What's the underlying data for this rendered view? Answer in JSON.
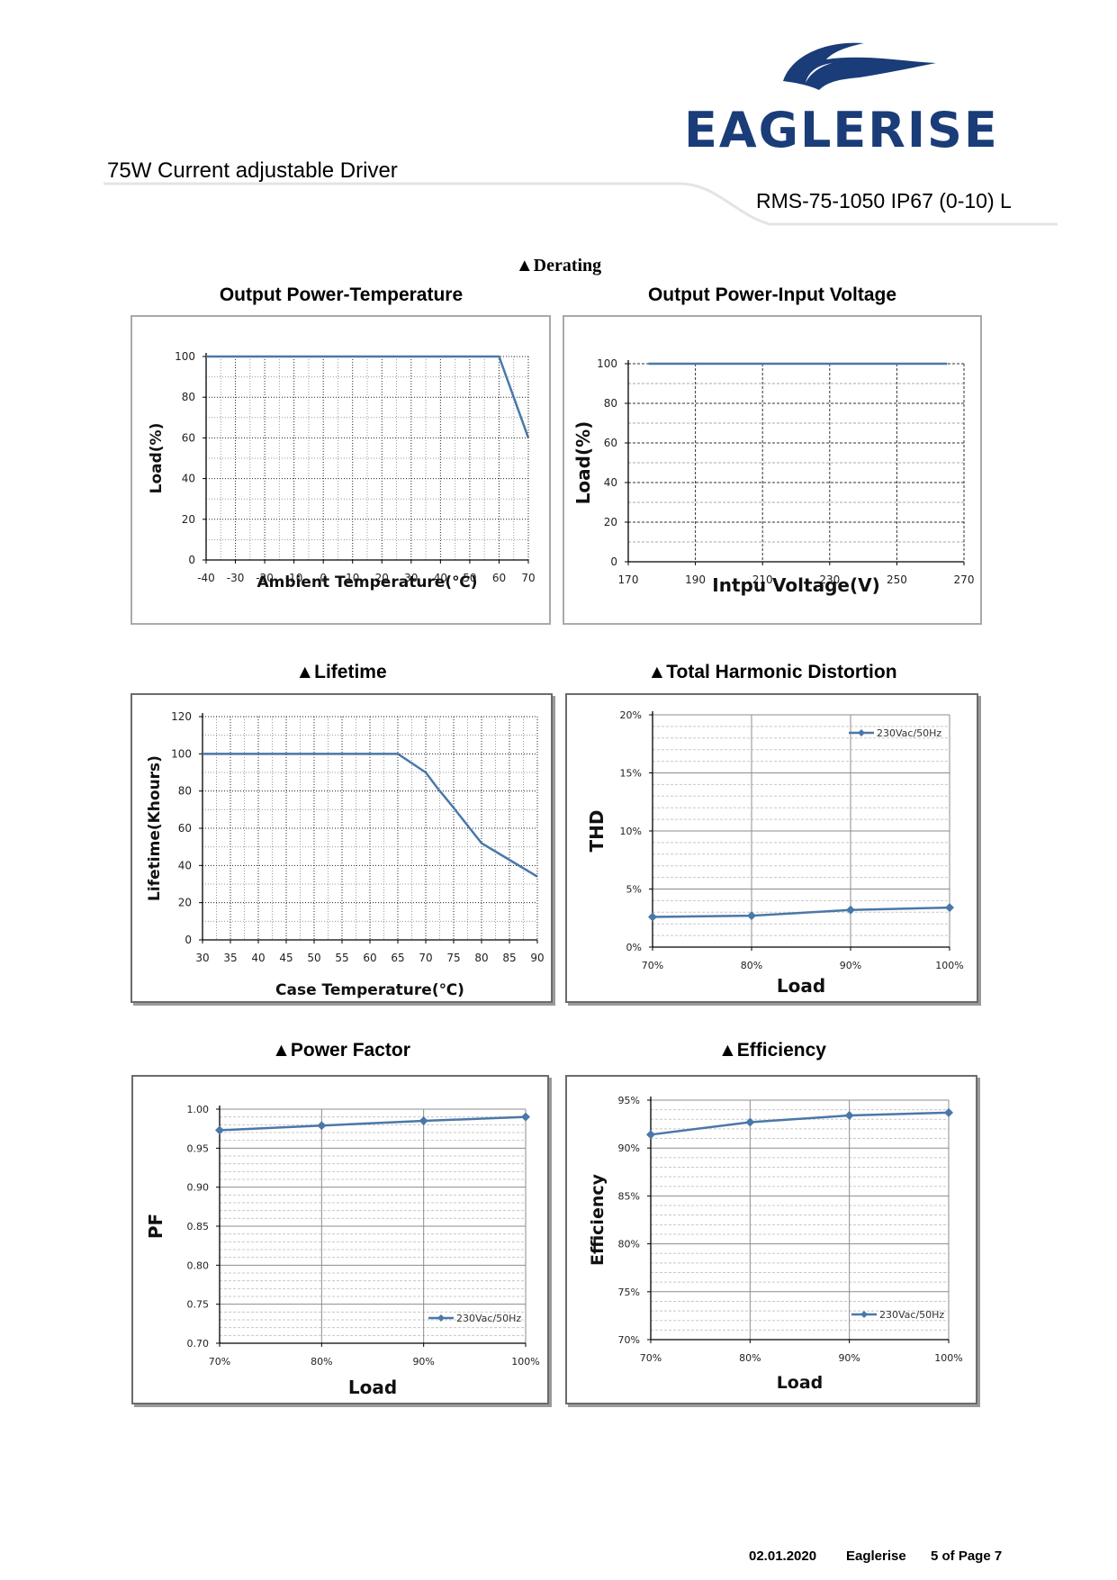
{
  "header": {
    "brand": "EAGLERISE",
    "doc_title": "75W Current adjustable Driver",
    "model": "RMS-75-1050 IP67 (0-10) L"
  },
  "section_derating": "▲Derating",
  "charts": {
    "temp": {
      "title": "Output Power-Temperature"
    },
    "vin": {
      "title": "Output Power-Input Voltage"
    },
    "life": {
      "title": "▲Lifetime"
    },
    "thd": {
      "title": "▲Total Harmonic Distortion"
    },
    "pf": {
      "title": "▲Power Factor"
    },
    "eff": {
      "title": "▲Efficiency"
    }
  },
  "footer": {
    "date": "02.01.2020",
    "company": "Eaglerise",
    "page": "5 of Page 7"
  },
  "colors": {
    "line": "#4a78a8",
    "brand_navy": "#1a3c78",
    "grid": "#7f7f7f"
  },
  "chart_data": [
    {
      "id": "temp",
      "type": "line",
      "title": "Output Power-Temperature",
      "xlabel": "Ambient Temperature(℃)",
      "ylabel": "Load(%)",
      "xlim": [
        -40,
        70
      ],
      "ylim": [
        0,
        100
      ],
      "xticks": [
        "-40",
        "-30",
        "-20",
        "-10",
        "0",
        "10",
        "20",
        "30",
        "40",
        "50",
        "60",
        "70"
      ],
      "yticks": [
        "0",
        "20",
        "40",
        "60",
        "80",
        "100"
      ],
      "grid": "dotted",
      "marker": false,
      "x": [
        -40,
        60,
        70
      ],
      "y": [
        100,
        100,
        60
      ]
    },
    {
      "id": "vin",
      "type": "line",
      "title": "Output Power-Input Voltage",
      "xlabel": "Intpu Voltage(V)",
      "ylabel": "Load(%)",
      "xlim": [
        170,
        270
      ],
      "ylim": [
        0,
        100
      ],
      "xticks": [
        "170",
        "190",
        "210",
        "230",
        "250",
        "270"
      ],
      "yticks": [
        "0",
        "20",
        "40",
        "60",
        "80",
        "100"
      ],
      "grid": "dashed",
      "marker": false,
      "x": [
        176,
        265
      ],
      "y": [
        100,
        100
      ]
    },
    {
      "id": "life",
      "type": "line",
      "title": "▲Lifetime",
      "xlabel": "Case Temperature(℃)",
      "ylabel": "Lifetime(Khours)",
      "xlim": [
        30,
        90
      ],
      "ylim": [
        0,
        120
      ],
      "xticks": [
        "30",
        "35",
        "40",
        "45",
        "50",
        "55",
        "60",
        "65",
        "70",
        "75",
        "80",
        "85",
        "90"
      ],
      "yticks": [
        "0",
        "20",
        "40",
        "60",
        "80",
        "100",
        "120"
      ],
      "grid": "dotted",
      "marker": false,
      "x": [
        30,
        65,
        70,
        72,
        75,
        80,
        85,
        90
      ],
      "y": [
        100,
        100,
        90,
        82,
        71,
        52,
        43,
        34
      ]
    },
    {
      "id": "thd",
      "type": "line",
      "title": "▲Total Harmonic Distortion",
      "xlabel": "Load",
      "ylabel": "THD",
      "xlim": [
        0.7,
        1.0
      ],
      "ylim": [
        0,
        0.2
      ],
      "xticks": [
        "70%",
        "80%",
        "90%",
        "100%"
      ],
      "yticks": [
        "0%",
        "5%",
        "10%",
        "15%",
        "20%"
      ],
      "grid": "solid-major-dashed-minor",
      "marker": true,
      "legend": "top-right",
      "series": [
        {
          "name": "230Vac/50Hz",
          "x": [
            0.7,
            0.8,
            0.9,
            1.0
          ],
          "values": [
            0.026,
            0.027,
            0.032,
            0.034
          ]
        }
      ]
    },
    {
      "id": "pf",
      "type": "line",
      "title": "▲Power Factor",
      "xlabel": "Load",
      "ylabel": "PF",
      "xlim": [
        0.7,
        1.0
      ],
      "ylim": [
        0.7,
        1.0
      ],
      "xticks": [
        "70%",
        "80%",
        "90%",
        "100%"
      ],
      "yticks": [
        "0.70",
        "0.75",
        "0.80",
        "0.85",
        "0.90",
        "0.95",
        "1.00"
      ],
      "grid": "solid-major-dashed-minor",
      "marker": true,
      "legend": "bottom-right",
      "series": [
        {
          "name": "230Vac/50Hz",
          "x": [
            0.7,
            0.8,
            0.9,
            1.0
          ],
          "values": [
            0.973,
            0.979,
            0.985,
            0.99
          ]
        }
      ]
    },
    {
      "id": "eff",
      "type": "line",
      "title": "▲Efficiency",
      "xlabel": "Load",
      "ylabel": "Efficiency",
      "xlim": [
        0.7,
        1.0
      ],
      "ylim": [
        0.7,
        0.95
      ],
      "xticks": [
        "70%",
        "80%",
        "90%",
        "100%"
      ],
      "yticks": [
        "70%",
        "75%",
        "80%",
        "85%",
        "90%",
        "95%"
      ],
      "grid": "solid-major-dashed-minor",
      "marker": true,
      "legend": "bottom-right",
      "series": [
        {
          "name": "230Vac/50Hz",
          "x": [
            0.7,
            0.8,
            0.9,
            1.0
          ],
          "values": [
            0.914,
            0.927,
            0.934,
            0.937
          ]
        }
      ]
    }
  ]
}
